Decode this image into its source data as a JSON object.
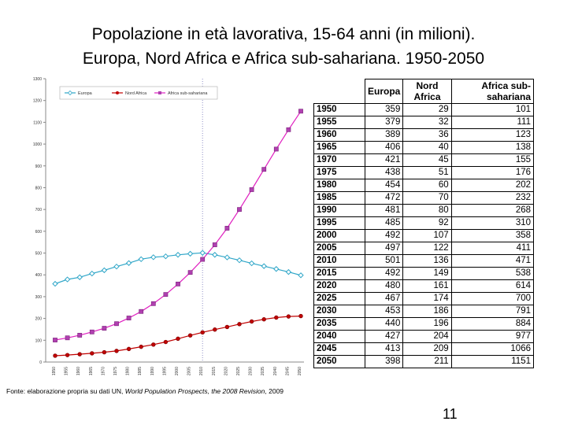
{
  "slide": {
    "title_line1": "Popolazione in età lavorativa, 15-64 anni (in milioni).",
    "title_line2": "Europa, Nord Africa e Africa sub-sahariana. 1950-2050",
    "source_prefix": "Fonte: elaborazione propria su dati UN, ",
    "source_italic": "World Population Prospects, the 2008 Revision",
    "source_suffix": ", 2009",
    "page_number": "11"
  },
  "table": {
    "headers": [
      "",
      "Europa",
      "Nord Africa",
      "Africa sub-sahariana"
    ],
    "rows": [
      [
        "1950",
        "359",
        "29",
        "101"
      ],
      [
        "1955",
        "379",
        "32",
        "111"
      ],
      [
        "1960",
        "389",
        "36",
        "123"
      ],
      [
        "1965",
        "406",
        "40",
        "138"
      ],
      [
        "1970",
        "421",
        "45",
        "155"
      ],
      [
        "1975",
        "438",
        "51",
        "176"
      ],
      [
        "1980",
        "454",
        "60",
        "202"
      ],
      [
        "1985",
        "472",
        "70",
        "232"
      ],
      [
        "1990",
        "481",
        "80",
        "268"
      ],
      [
        "1995",
        "485",
        "92",
        "310"
      ],
      [
        "2000",
        "492",
        "107",
        "358"
      ],
      [
        "2005",
        "497",
        "122",
        "411"
      ],
      [
        "2010",
        "501",
        "136",
        "471"
      ],
      [
        "2015",
        "492",
        "149",
        "538"
      ],
      [
        "2020",
        "480",
        "161",
        "614"
      ],
      [
        "2025",
        "467",
        "174",
        "700"
      ],
      [
        "2030",
        "453",
        "186",
        "791"
      ],
      [
        "2035",
        "440",
        "196",
        "884"
      ],
      [
        "2040",
        "427",
        "204",
        "977"
      ],
      [
        "2045",
        "413",
        "209",
        "1066"
      ],
      [
        "2050",
        "398",
        "211",
        "1151"
      ]
    ]
  },
  "chart_data": {
    "type": "line",
    "title": "",
    "xlabel": "",
    "ylabel": "",
    "x": [
      1950,
      1955,
      1960,
      1965,
      1970,
      1975,
      1980,
      1985,
      1990,
      1995,
      2000,
      2005,
      2010,
      2015,
      2020,
      2025,
      2030,
      2035,
      2040,
      2045,
      2050
    ],
    "x_tick_labels": [
      "1950",
      "1955",
      "1960",
      "1965",
      "1970",
      "1975",
      "1980",
      "1985",
      "1990",
      "1995",
      "2000",
      "2005",
      "2010",
      "2015",
      "2020",
      "2025",
      "2030",
      "2035",
      "2040",
      "2045",
      "2050"
    ],
    "ylim": [
      0,
      1300
    ],
    "y_ticks": [
      0,
      100,
      200,
      300,
      400,
      500,
      600,
      700,
      800,
      900,
      1000,
      1100,
      1200,
      1300
    ],
    "y_tick_labels": [
      "0",
      "100",
      "200",
      "300",
      "400",
      "500",
      "600",
      "700",
      "800",
      "900",
      "1000",
      "1100",
      "1200",
      "1300"
    ],
    "marker_line_x": 2010,
    "legend_position": "top",
    "series": [
      {
        "name": "Europa",
        "color": "#2fa6c8",
        "marker": "diamond",
        "values": [
          359,
          379,
          389,
          406,
          421,
          438,
          454,
          472,
          481,
          485,
          492,
          497,
          501,
          492,
          480,
          467,
          453,
          440,
          427,
          413,
          398
        ]
      },
      {
        "name": "Nord Africa",
        "color": "#c00000",
        "marker": "circle",
        "values": [
          29,
          32,
          36,
          40,
          45,
          51,
          60,
          70,
          80,
          92,
          107,
          122,
          136,
          149,
          161,
          174,
          186,
          196,
          204,
          209,
          211
        ]
      },
      {
        "name": "Africa sub-sahariana",
        "color": "#e020c0",
        "marker": "square",
        "values": [
          101,
          111,
          123,
          138,
          155,
          176,
          202,
          232,
          268,
          310,
          358,
          411,
          471,
          538,
          614,
          700,
          791,
          884,
          977,
          1066,
          1151
        ]
      }
    ]
  }
}
